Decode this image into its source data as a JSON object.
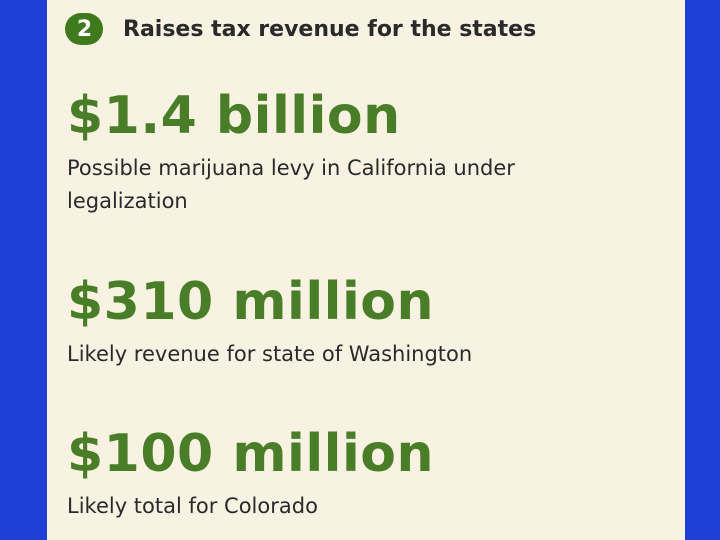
{
  "header": {
    "number": "2",
    "title": "Raises tax revenue for the states"
  },
  "stats": [
    {
      "value": "$1.4 billion",
      "description": "Possible marijuana levy in California under legalization"
    },
    {
      "value": "$310 million",
      "description": "Likely revenue for state of Washington"
    },
    {
      "value": "$100 million",
      "description": "Likely total for Colorado"
    }
  ],
  "colors": {
    "background": "#1f3fd9",
    "panel": "#f7f2e2",
    "accent_green": "#4a7d27",
    "badge_green": "#3f7a1e",
    "text": "#2a2a2a"
  }
}
